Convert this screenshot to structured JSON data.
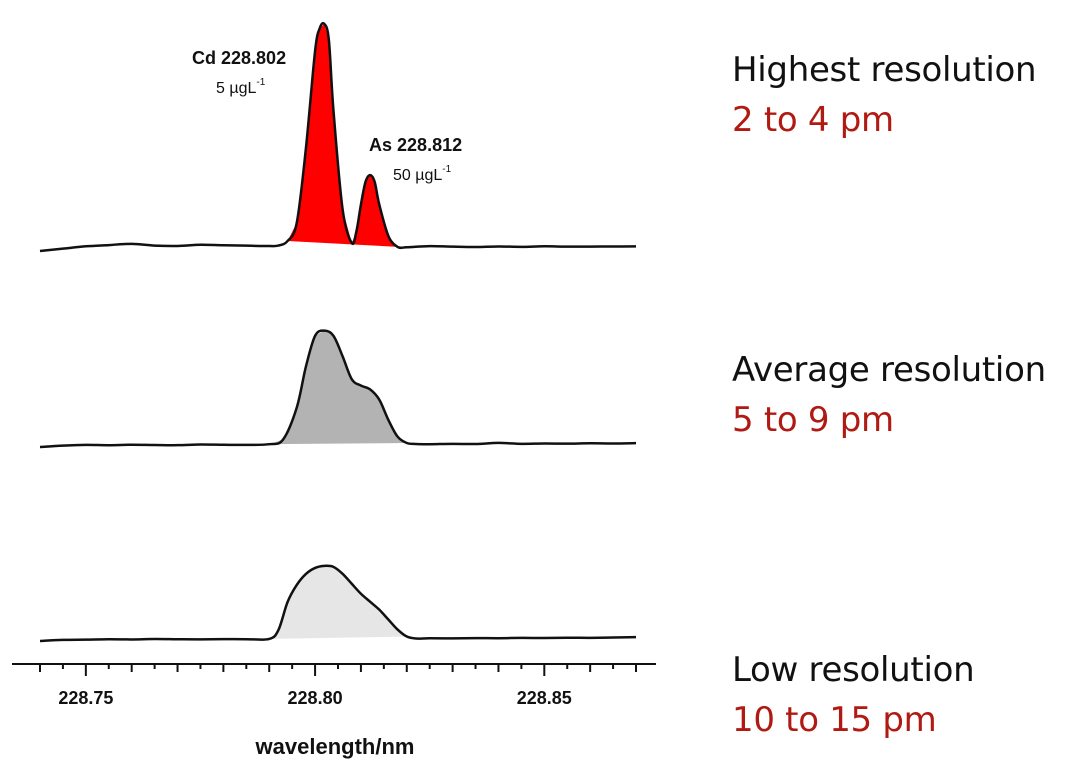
{
  "chart_data": {
    "type": "line",
    "title": "",
    "xlabel": "wavelength/nm",
    "ylabel": "",
    "xlim": [
      228.74,
      228.87
    ],
    "ylim": [
      0,
      1.05
    ],
    "x_ticks": [
      {
        "value": 228.75,
        "label": "228.75"
      },
      {
        "value": 228.8,
        "label": "228.80"
      },
      {
        "value": 228.85,
        "label": "228.85"
      }
    ],
    "series": [
      {
        "name": "Highest resolution",
        "fill_color": "#ff0000",
        "x": [
          228.74,
          228.745,
          228.75,
          228.755,
          228.76,
          228.765,
          228.77,
          228.775,
          228.78,
          228.785,
          228.79,
          228.792,
          228.794,
          228.796,
          228.798,
          228.8,
          228.801,
          228.802,
          228.803,
          228.804,
          228.806,
          228.808,
          228.809,
          228.81,
          228.811,
          228.812,
          228.813,
          228.814,
          228.816,
          228.818,
          228.82,
          228.825,
          228.83,
          228.835,
          228.84,
          228.845,
          228.85,
          228.855,
          228.86,
          228.865,
          228.87
        ],
        "y": [
          0.0,
          0.01,
          0.02,
          0.025,
          0.03,
          0.022,
          0.02,
          0.025,
          0.022,
          0.02,
          0.018,
          0.02,
          0.04,
          0.12,
          0.45,
          0.88,
          0.98,
          1.0,
          0.93,
          0.62,
          0.18,
          0.03,
          0.08,
          0.2,
          0.3,
          0.33,
          0.3,
          0.2,
          0.06,
          0.012,
          0.01,
          0.015,
          0.012,
          0.01,
          0.012,
          0.01,
          0.012,
          0.01,
          0.01,
          0.01,
          0.01
        ]
      },
      {
        "name": "Average resolution",
        "fill_color": "#b3b3b3",
        "x": [
          228.74,
          228.745,
          228.75,
          228.755,
          228.76,
          228.765,
          228.77,
          228.775,
          228.78,
          228.785,
          228.79,
          228.793,
          228.796,
          228.798,
          228.8,
          228.802,
          228.804,
          228.806,
          228.808,
          228.81,
          228.812,
          228.814,
          228.816,
          228.818,
          228.82,
          228.822,
          228.825,
          228.83,
          228.835,
          228.84,
          228.845,
          228.85,
          228.855,
          228.86,
          228.865,
          228.87
        ],
        "y": [
          0.0,
          0.01,
          0.015,
          0.012,
          0.015,
          0.012,
          0.01,
          0.015,
          0.012,
          0.01,
          0.015,
          0.05,
          0.3,
          0.62,
          0.86,
          0.9,
          0.86,
          0.7,
          0.52,
          0.47,
          0.44,
          0.36,
          0.2,
          0.07,
          0.02,
          0.012,
          0.01,
          0.012,
          0.01,
          0.018,
          0.01,
          0.012,
          0.01,
          0.012,
          0.01,
          0.012
        ]
      },
      {
        "name": "Low resolution",
        "fill_color": "#e6e6e6",
        "x": [
          228.74,
          228.745,
          228.75,
          228.755,
          228.76,
          228.765,
          228.77,
          228.775,
          228.78,
          228.785,
          228.79,
          228.792,
          228.794,
          228.796,
          228.798,
          228.8,
          228.802,
          228.804,
          228.806,
          228.808,
          228.81,
          228.812,
          228.814,
          228.816,
          228.818,
          228.82,
          228.822,
          228.825,
          228.83,
          228.835,
          228.84,
          228.845,
          228.85,
          228.855,
          228.86,
          228.865,
          228.87
        ],
        "y": [
          0.0,
          0.01,
          0.012,
          0.015,
          0.012,
          0.015,
          0.012,
          0.01,
          0.012,
          0.01,
          0.012,
          0.1,
          0.38,
          0.55,
          0.66,
          0.72,
          0.74,
          0.73,
          0.66,
          0.56,
          0.46,
          0.38,
          0.3,
          0.2,
          0.1,
          0.03,
          0.01,
          0.012,
          0.01,
          0.012,
          0.01,
          0.012,
          0.01,
          0.012,
          0.01,
          0.012,
          0.015
        ]
      }
    ],
    "annotations": [
      {
        "element": "Cd",
        "wavelength": "228.802",
        "concentration": "5 µgL",
        "exponent": "-1"
      },
      {
        "element": "As",
        "wavelength": "228.812",
        "concentration": "50 µgL",
        "exponent": "-1"
      }
    ]
  },
  "resolution_labels": [
    {
      "title": "Highest resolution",
      "range": "2 to 4 pm"
    },
    {
      "title": "Average resolution",
      "range": "5 to 9 pm"
    },
    {
      "title": "Low resolution",
      "range": "10 to 15 pm"
    }
  ],
  "colors": {
    "range_text": "#b11a12",
    "line": "#111111",
    "axis": "#111111"
  }
}
